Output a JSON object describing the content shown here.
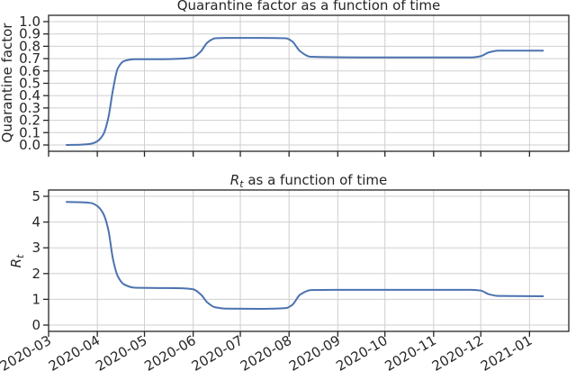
{
  "chart_data": [
    {
      "type": "line",
      "title": "Quarantine factor as a function of time",
      "xlabel": "",
      "ylabel": "Quarantine factor",
      "ylim": [
        0.0,
        1.0
      ],
      "yticks": [
        "0.0",
        "0.1",
        "0.2",
        "0.3",
        "0.4",
        "0.5",
        "0.6",
        "0.7",
        "0.8",
        "0.9",
        "1.0"
      ],
      "ytick_values": [
        0.0,
        0.1,
        0.2,
        0.3,
        0.4,
        0.5,
        0.6,
        0.7,
        0.8,
        0.9,
        1.0
      ],
      "grid": true,
      "color": "#4c72b0",
      "series": [
        {
          "x": [
            "2020-03-12",
            "2020-03-22",
            "2020-03-28",
            "2020-04-01",
            "2020-04-05",
            "2020-04-08",
            "2020-04-11",
            "2020-04-14",
            "2020-04-18",
            "2020-04-25",
            "2020-05-10",
            "2020-05-25",
            "2020-06-01",
            "2020-06-06",
            "2020-06-10",
            "2020-06-15",
            "2020-06-22",
            "2020-07-15",
            "2020-07-30",
            "2020-08-03",
            "2020-08-08",
            "2020-08-15",
            "2020-09-15",
            "2020-11-25",
            "2020-12-01",
            "2020-12-06",
            "2020-12-12",
            "2021-01-10"
          ],
          "y": [
            0.0,
            0.003,
            0.01,
            0.03,
            0.09,
            0.22,
            0.45,
            0.62,
            0.68,
            0.695,
            0.695,
            0.7,
            0.71,
            0.76,
            0.83,
            0.865,
            0.868,
            0.868,
            0.865,
            0.84,
            0.76,
            0.715,
            0.71,
            0.71,
            0.72,
            0.75,
            0.765,
            0.765
          ]
        }
      ]
    },
    {
      "type": "line",
      "title_prefix": "R",
      "title_sub": "t",
      "title_suffix": " as a function of time",
      "xlabel": "",
      "ylabel": "R",
      "ylabel_sub": "t",
      "ylim": [
        0.0,
        5.0
      ],
      "yticks": [
        "0",
        "1",
        "2",
        "3",
        "4",
        "5"
      ],
      "ytick_values": [
        0,
        1,
        2,
        3,
        4,
        5
      ],
      "xticks": [
        "2020-03",
        "2020-04",
        "2020-05",
        "2020-06",
        "2020-07",
        "2020-08",
        "2020-09",
        "2020-10",
        "2020-11",
        "2020-12",
        "2021-01"
      ],
      "xtick_values": [
        "2020-03-01",
        "2020-04-01",
        "2020-05-01",
        "2020-06-01",
        "2020-07-01",
        "2020-08-01",
        "2020-09-01",
        "2020-10-01",
        "2020-11-01",
        "2020-12-01",
        "2021-01-01"
      ],
      "xlim": [
        "2020-03-01",
        "2021-01-26"
      ],
      "grid": true,
      "color": "#4c72b0",
      "series": [
        {
          "x": [
            "2020-03-12",
            "2020-03-22",
            "2020-03-28",
            "2020-04-01",
            "2020-04-05",
            "2020-04-08",
            "2020-04-11",
            "2020-04-14",
            "2020-04-18",
            "2020-04-25",
            "2020-05-10",
            "2020-05-25",
            "2020-06-01",
            "2020-06-06",
            "2020-06-10",
            "2020-06-15",
            "2020-06-22",
            "2020-07-15",
            "2020-07-30",
            "2020-08-03",
            "2020-08-08",
            "2020-08-15",
            "2020-09-15",
            "2020-11-25",
            "2020-12-01",
            "2020-12-06",
            "2020-12-12",
            "2021-01-10"
          ],
          "y": [
            4.78,
            4.77,
            4.74,
            4.62,
            4.3,
            3.7,
            2.55,
            1.9,
            1.58,
            1.45,
            1.44,
            1.43,
            1.39,
            1.18,
            0.88,
            0.69,
            0.64,
            0.63,
            0.66,
            0.78,
            1.18,
            1.36,
            1.37,
            1.37,
            1.34,
            1.2,
            1.13,
            1.12
          ]
        }
      ]
    }
  ]
}
